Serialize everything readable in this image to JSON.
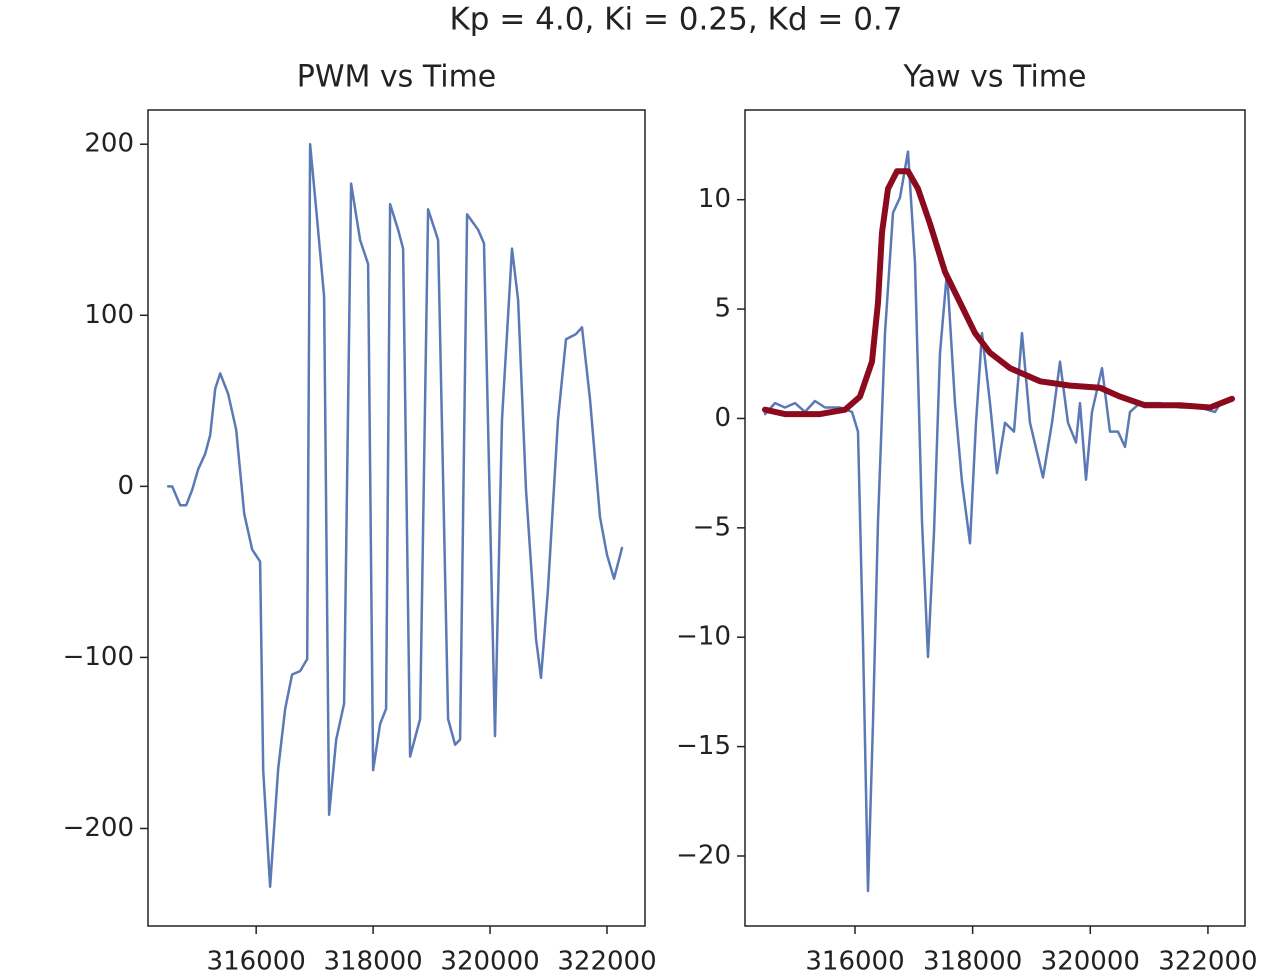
{
  "title": "Kp = 4.0, Ki = 0.25, Kd = 0.7",
  "chart_data": [
    {
      "type": "line",
      "title": "PWM vs Time",
      "xlim": [
        314150,
        322650
      ],
      "ylim": [
        -257,
        220
      ],
      "xticks": [
        316000,
        318000,
        320000,
        322000
      ],
      "yticks": [
        {
          "value": -200,
          "label": "−200"
        },
        {
          "value": -100,
          "label": "−100"
        },
        0,
        100,
        200
      ],
      "series": [
        {
          "color": "#5b79b5",
          "x": [
            314496,
            314564,
            314701,
            314803,
            314906,
            315009,
            315128,
            315214,
            315299,
            315385,
            315521,
            315658,
            315795,
            315932,
            316068,
            316120,
            316239,
            316376,
            316496,
            316615,
            316752,
            316872,
            316923,
            317026,
            317162,
            317248,
            317368,
            317504,
            317624,
            317778,
            317915,
            318000,
            318120,
            318222,
            318291,
            318427,
            318513,
            318632,
            318803,
            318940,
            319111,
            319282,
            319402,
            319487,
            319607,
            319795,
            319897,
            320085,
            320205,
            320376,
            320479,
            320615,
            320786,
            320872,
            320991,
            321162,
            321299,
            321470,
            321573,
            321709,
            321880,
            322000,
            322120,
            322256
          ],
          "values": [
            0,
            0,
            -11,
            -11,
            -2,
            10,
            19,
            30,
            57,
            66,
            54,
            33,
            -16,
            -37,
            -44,
            -166,
            -234,
            -165,
            -130,
            -110,
            -108,
            -101,
            200,
            162,
            111,
            -192,
            -148,
            -127,
            177,
            144,
            130,
            -166,
            -139,
            -130,
            165,
            150,
            139,
            -158,
            -136,
            162,
            144,
            -136,
            -151,
            -148,
            159,
            150,
            142,
            -146,
            39,
            139,
            109,
            -2,
            -89,
            -112,
            -60,
            39,
            86,
            89,
            93,
            51,
            -18,
            -40,
            -54,
            -36
          ]
        }
      ]
    },
    {
      "type": "line",
      "title": "Yaw vs Time",
      "xlim": [
        314130,
        322630
      ],
      "ylim": [
        -23.2,
        14.1
      ],
      "xticks": [
        316000,
        318000,
        320000,
        322000
      ],
      "yticks": [
        {
          "value": -20,
          "label": "−20"
        },
        {
          "value": -15,
          "label": "−15"
        },
        {
          "value": -10,
          "label": "−10"
        },
        {
          "value": -5,
          "label": "−5"
        },
        0,
        5,
        10
      ],
      "series": [
        {
          "color": "#5b79b5",
          "width": 2.5,
          "x": [
            314470,
            314640,
            314810,
            314980,
            315150,
            315320,
            315490,
            315745,
            315949,
            316051,
            316136,
            316221,
            316306,
            316391,
            316510,
            316646,
            316765,
            316901,
            317020,
            317139,
            317241,
            317343,
            317445,
            317564,
            317700,
            317819,
            317955,
            318057,
            318159,
            318295,
            318414,
            318550,
            318703,
            318839,
            318975,
            319196,
            319349,
            319485,
            319621,
            319757,
            319825,
            319927,
            320029,
            320199,
            320335,
            320471,
            320590,
            320675,
            320845,
            321185,
            321525,
            321865,
            322120,
            322239,
            322409
          ],
          "values": [
            0.2,
            0.7,
            0.5,
            0.7,
            0.3,
            0.8,
            0.5,
            0.5,
            0.3,
            -0.6,
            -10.2,
            -21.6,
            -13.9,
            -4.7,
            3.9,
            9.4,
            10.1,
            12.2,
            7.1,
            -4.7,
            -10.9,
            -5.2,
            3.0,
            6.7,
            0.7,
            -2.9,
            -5.7,
            -0.2,
            3.9,
            0.7,
            -2.5,
            -0.2,
            -0.6,
            3.9,
            -0.2,
            -2.7,
            -0.2,
            2.6,
            -0.2,
            -1.1,
            0.7,
            -2.8,
            0.3,
            2.3,
            -0.6,
            -0.6,
            -1.3,
            0.3,
            0.7,
            0.7,
            0.5,
            0.5,
            0.3,
            0.8,
            0.9
          ]
        },
        {
          "color": "#8b0a1e",
          "width": 6,
          "x": [
            314470,
            314810,
            315405,
            315830,
            316085,
            316289,
            316391,
            316459,
            316561,
            316714,
            316901,
            317071,
            317275,
            317530,
            317785,
            318040,
            318295,
            318635,
            319145,
            319655,
            320165,
            320505,
            320930,
            321525,
            322035,
            322409
          ],
          "values": [
            0.4,
            0.2,
            0.2,
            0.4,
            1.0,
            2.6,
            5.3,
            8.5,
            10.5,
            11.3,
            11.3,
            10.5,
            8.9,
            6.7,
            5.3,
            3.9,
            3.0,
            2.3,
            1.7,
            1.5,
            1.4,
            1.0,
            0.6,
            0.6,
            0.5,
            0.9
          ]
        }
      ]
    }
  ]
}
